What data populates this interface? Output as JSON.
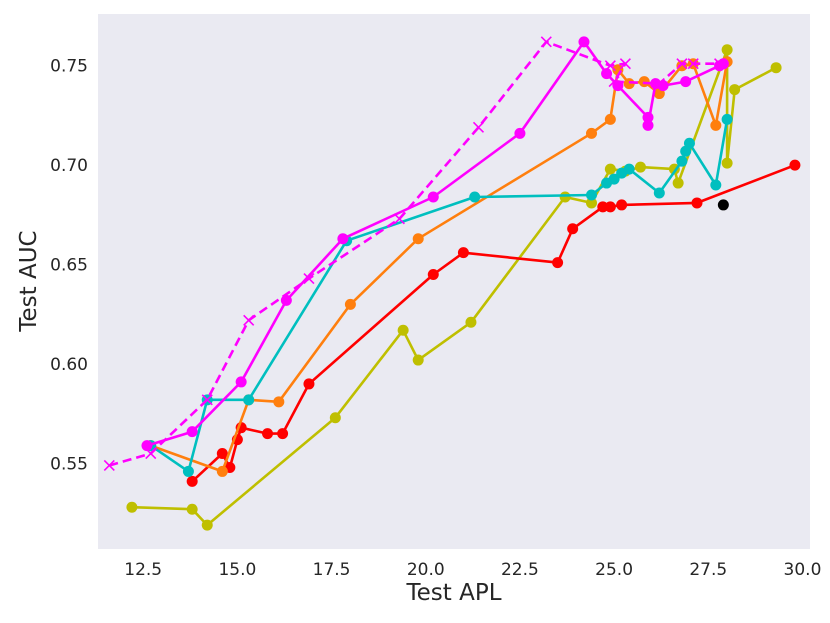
{
  "chart_data": {
    "type": "line",
    "title": "",
    "xlabel": "Test APL",
    "ylabel": "Test AUC",
    "xlim": [
      11.3,
      30.2
    ],
    "ylim": [
      0.507,
      0.776
    ],
    "xticks": [
      12.5,
      15.0,
      17.5,
      20.0,
      22.5,
      25.0,
      27.5,
      30.0
    ],
    "yticks": [
      0.55,
      0.6,
      0.65,
      0.7,
      0.75
    ],
    "xtick_labels": [
      "12.5",
      "15.0",
      "17.5",
      "20.0",
      "22.5",
      "25.0",
      "27.5",
      "30.0"
    ],
    "ytick_labels": [
      "0.55",
      "0.60",
      "0.65",
      "0.70",
      "0.75"
    ],
    "grid": false,
    "background": "#eaeaf2",
    "series": [
      {
        "color": "#bfbf00",
        "marker": "circle",
        "dashed": false,
        "points": [
          [
            12.2,
            0.528
          ],
          [
            13.8,
            0.527
          ],
          [
            14.2,
            0.519
          ],
          [
            17.6,
            0.573
          ],
          [
            19.4,
            0.617
          ],
          [
            19.8,
            0.602
          ],
          [
            21.2,
            0.621
          ],
          [
            23.7,
            0.684
          ],
          [
            24.4,
            0.681
          ],
          [
            24.9,
            0.698
          ],
          [
            25.3,
            0.697
          ],
          [
            25.7,
            0.699
          ],
          [
            26.6,
            0.698
          ],
          [
            26.7,
            0.691
          ],
          [
            28.0,
            0.758
          ],
          [
            28.0,
            0.701
          ],
          [
            28.2,
            0.738
          ],
          [
            29.3,
            0.749
          ]
        ]
      },
      {
        "color": "#ff0000",
        "marker": "circle",
        "dashed": false,
        "points": [
          [
            13.8,
            0.541
          ],
          [
            14.6,
            0.555
          ],
          [
            14.8,
            0.548
          ],
          [
            15.0,
            0.562
          ],
          [
            15.1,
            0.568
          ],
          [
            15.8,
            0.565
          ],
          [
            16.2,
            0.565
          ],
          [
            16.9,
            0.59
          ],
          [
            20.2,
            0.645
          ],
          [
            21.0,
            0.656
          ],
          [
            23.5,
            0.651
          ],
          [
            23.9,
            0.668
          ],
          [
            24.7,
            0.679
          ],
          [
            24.9,
            0.679
          ],
          [
            25.2,
            0.68
          ],
          [
            27.2,
            0.681
          ],
          [
            29.8,
            0.7
          ]
        ]
      },
      {
        "color": "#ff7f0e",
        "marker": "circle",
        "dashed": false,
        "points": [
          [
            12.7,
            0.559
          ],
          [
            14.6,
            0.546
          ],
          [
            15.3,
            0.582
          ],
          [
            16.1,
            0.581
          ],
          [
            18.0,
            0.63
          ],
          [
            19.8,
            0.663
          ],
          [
            24.4,
            0.716
          ],
          [
            24.9,
            0.723
          ],
          [
            25.1,
            0.748
          ],
          [
            25.4,
            0.741
          ],
          [
            25.8,
            0.742
          ],
          [
            26.2,
            0.736
          ],
          [
            26.8,
            0.75
          ],
          [
            27.1,
            0.751
          ],
          [
            27.7,
            0.72
          ],
          [
            28.0,
            0.752
          ]
        ]
      },
      {
        "color": "#00bfbf",
        "marker": "circle",
        "dashed": false,
        "points": [
          [
            12.7,
            0.559
          ],
          [
            13.7,
            0.546
          ],
          [
            14.2,
            0.582
          ],
          [
            15.3,
            0.582
          ],
          [
            17.9,
            0.662
          ],
          [
            21.3,
            0.684
          ],
          [
            24.4,
            0.685
          ],
          [
            24.8,
            0.691
          ],
          [
            25.0,
            0.693
          ],
          [
            25.2,
            0.696
          ],
          [
            25.4,
            0.698
          ],
          [
            26.2,
            0.686
          ],
          [
            26.8,
            0.702
          ],
          [
            26.9,
            0.707
          ],
          [
            27.0,
            0.711
          ],
          [
            27.7,
            0.69
          ],
          [
            28.0,
            0.723
          ]
        ]
      },
      {
        "color": "#ff00ff",
        "marker": "circle",
        "dashed": false,
        "points": [
          [
            12.6,
            0.559
          ],
          [
            13.8,
            0.566
          ],
          [
            15.1,
            0.591
          ],
          [
            16.3,
            0.632
          ],
          [
            17.8,
            0.663
          ],
          [
            20.2,
            0.684
          ],
          [
            22.5,
            0.716
          ],
          [
            24.2,
            0.762
          ],
          [
            24.8,
            0.746
          ],
          [
            25.1,
            0.74
          ],
          [
            25.9,
            0.724
          ],
          [
            25.9,
            0.72
          ],
          [
            26.1,
            0.741
          ],
          [
            26.3,
            0.74
          ],
          [
            26.9,
            0.742
          ],
          [
            27.8,
            0.75
          ],
          [
            27.9,
            0.751
          ]
        ]
      },
      {
        "color": "#ff00ff",
        "marker": "x",
        "dashed": true,
        "points": [
          [
            11.6,
            0.549
          ],
          [
            12.7,
            0.555
          ],
          [
            14.2,
            0.582
          ],
          [
            15.3,
            0.622
          ],
          [
            16.9,
            0.643
          ],
          [
            19.3,
            0.673
          ],
          [
            21.4,
            0.719
          ],
          [
            23.2,
            0.762
          ],
          [
            24.9,
            0.75
          ],
          [
            25.3,
            0.751
          ],
          [
            25.0,
            0.742
          ],
          [
            26.2,
            0.741
          ],
          [
            26.8,
            0.751
          ],
          [
            27.1,
            0.751
          ],
          [
            27.8,
            0.751
          ]
        ]
      },
      {
        "color": "#000000",
        "marker": "circle",
        "dashed": false,
        "points": [
          [
            27.9,
            0.68
          ]
        ]
      }
    ]
  }
}
